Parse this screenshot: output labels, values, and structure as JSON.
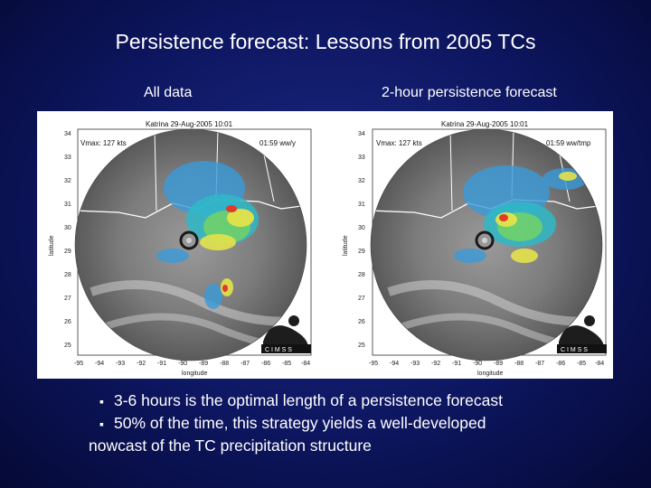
{
  "slide": {
    "title": "Persistence forecast: Lessons from 2005 TCs",
    "left_label": "All data",
    "right_label": "2-hour persistence forecast"
  },
  "left_map": {
    "header": "Katrina 29-Aug-2005 10:01",
    "vmax": "Vmax: 127 kts",
    "time": "01:59 ww/y",
    "logo_text": "C I M S S",
    "ylabel": "latitude",
    "xlabel": "longitude",
    "yticks": [
      "34",
      "33",
      "32",
      "31",
      "30",
      "29",
      "28",
      "27",
      "26",
      "25"
    ],
    "xticks": [
      "-95",
      "-94",
      "-93",
      "-92",
      "-91",
      "-90",
      "-89",
      "-88",
      "-87",
      "-86",
      "-85",
      "-84"
    ]
  },
  "right_map": {
    "header": "Katrina 29-Aug-2005 10:01",
    "vmax": "Vmax: 127 kts",
    "time": "01:59 ww/tmp",
    "logo_text": "C I M S S",
    "ylabel": "latitude",
    "xlabel": "longitude",
    "yticks": [
      "34",
      "33",
      "32",
      "31",
      "30",
      "29",
      "28",
      "27",
      "26",
      "25"
    ],
    "xticks": [
      "-95",
      "-94",
      "-93",
      "-92",
      "-91",
      "-90",
      "-89",
      "-88",
      "-87",
      "-86",
      "-85",
      "-84"
    ]
  },
  "bullets": [
    "3-6 hours is the optimal length of a persistence forecast",
    "50% of the time, this strategy yields a well-developed",
    "nowcast of the TC precipitation structure"
  ],
  "colors": {
    "background": "#0d1660",
    "text": "#ffffff"
  }
}
